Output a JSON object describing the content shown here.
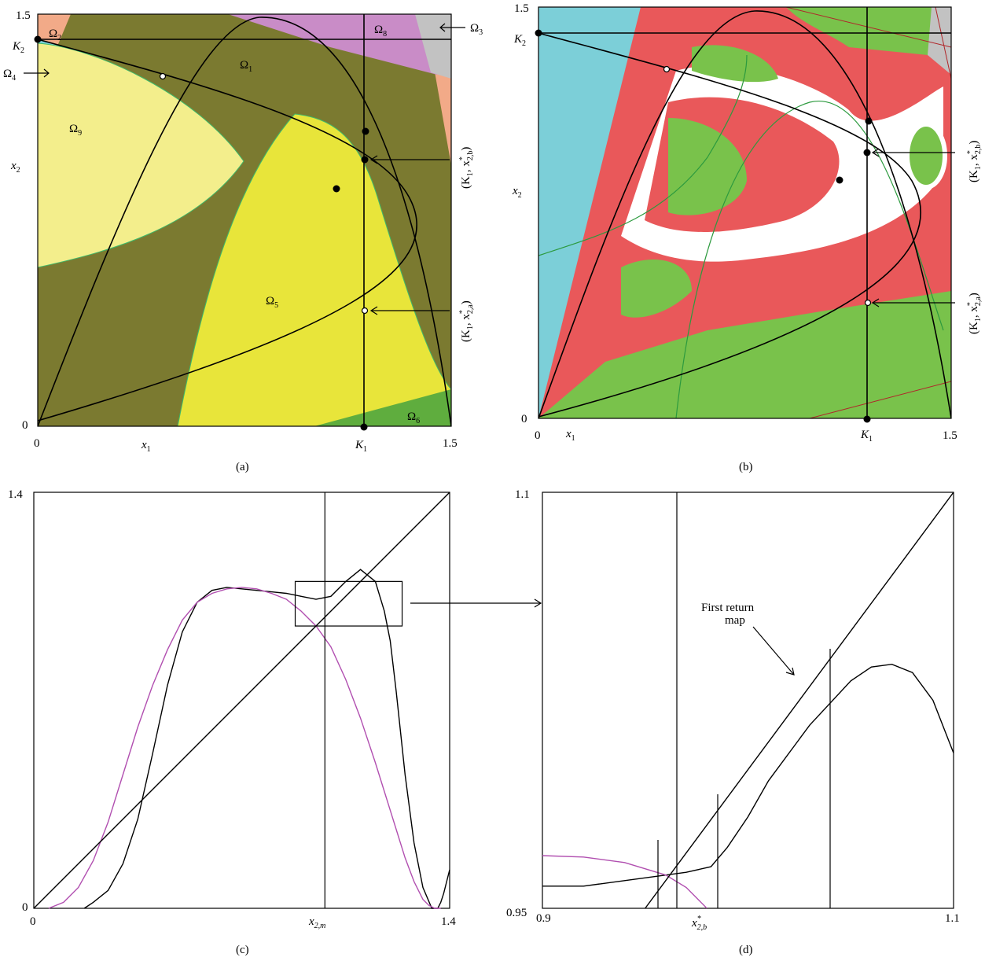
{
  "chart_data": [
    {
      "panel_label": "(a)",
      "type": "heatmap",
      "xlabel": "x1",
      "ylabel": "x2",
      "xlim": [
        0,
        1.5
      ],
      "ylim": [
        0,
        1.5
      ],
      "x_tick_labels": [
        "0",
        "1.5"
      ],
      "y_tick_labels": [
        "0",
        "1.5"
      ],
      "axis_point_labels": [
        "K1",
        "K2"
      ],
      "colors": {
        "omega1": "#7b7a30",
        "omega2": "#f2aa88",
        "omega3": "#c2c2c2",
        "omega4": "#7ccfd8",
        "omega5": "#e8e53a",
        "omega6": "#5fad3e",
        "omega8": "#c98cc7",
        "omega9": "#f3ee8c"
      },
      "region_labels": [
        "Ω1",
        "Ω2",
        "Ω3",
        "Ω4",
        "Ω5",
        "Ω6",
        "Ω8",
        "Ω9"
      ],
      "point_annotations": [
        "(K1, x*2,b)",
        "(K1, x*2,a)"
      ]
    },
    {
      "panel_label": "(b)",
      "type": "heatmap",
      "xlabel": "x1",
      "ylabel": "x2",
      "xlim": [
        0,
        1.5
      ],
      "ylim": [
        0,
        1.5
      ],
      "x_tick_labels": [
        "0",
        "1.5"
      ],
      "y_tick_labels": [
        "0",
        "1.5"
      ],
      "axis_point_labels": [
        "K1",
        "K2"
      ],
      "colors": {
        "cyan": "#7ccfd8",
        "green": "#79c24b",
        "red": "#e9585a",
        "white": "#ffffff",
        "gray": "#c2c2c2"
      },
      "point_annotations": [
        "(K1, x*2,b)",
        "(K1, x*2,a)"
      ]
    },
    {
      "panel_label": "(c)",
      "type": "line",
      "xlabel": "",
      "ylabel": "",
      "xlim": [
        0,
        1.4
      ],
      "ylim": [
        0,
        1.4
      ],
      "x_tick_labels": [
        "0",
        "1.4"
      ],
      "y_tick_labels": [
        "0",
        "1.4"
      ],
      "marker_label": "x2,m",
      "marker_x": 0.98,
      "inset_box": {
        "x": [
          0.88,
          1.24
        ],
        "y": [
          0.95,
          1.1
        ]
      },
      "series": [
        {
          "color": "#000000",
          "x": [
            0.17,
            0.2,
            0.25,
            0.3,
            0.35,
            0.4,
            0.45,
            0.5,
            0.55,
            0.6,
            0.65,
            0.7,
            0.75,
            0.8,
            0.85,
            0.9,
            0.95,
            1.0,
            1.05,
            1.1,
            1.15,
            1.18,
            1.2,
            1.22,
            1.25,
            1.28,
            1.31,
            1.34,
            1.36,
            1.37,
            1.38,
            1.39,
            1.4
          ],
          "y": [
            0.0,
            0.02,
            0.06,
            0.15,
            0.3,
            0.52,
            0.75,
            0.93,
            1.03,
            1.07,
            1.08,
            1.075,
            1.07,
            1.065,
            1.06,
            1.05,
            1.04,
            1.05,
            1.1,
            1.14,
            1.1,
            1.0,
            0.9,
            0.73,
            0.45,
            0.22,
            0.07,
            0.0,
            0.0,
            0.02,
            0.05,
            0.09,
            0.13
          ]
        },
        {
          "color": "#b14fb0",
          "x": [
            0.05,
            0.1,
            0.15,
            0.2,
            0.25,
            0.3,
            0.35,
            0.4,
            0.45,
            0.5,
            0.55,
            0.6,
            0.65,
            0.7,
            0.75,
            0.8,
            0.85,
            0.9,
            0.95,
            1.0,
            1.05,
            1.1,
            1.15,
            1.2,
            1.25,
            1.28,
            1.31,
            1.33,
            1.35,
            1.37
          ],
          "y": [
            0.0,
            0.02,
            0.07,
            0.16,
            0.29,
            0.45,
            0.61,
            0.75,
            0.87,
            0.97,
            1.03,
            1.06,
            1.075,
            1.08,
            1.075,
            1.06,
            1.04,
            1.0,
            0.95,
            0.88,
            0.77,
            0.64,
            0.49,
            0.33,
            0.17,
            0.09,
            0.03,
            0.01,
            0.0,
            0.0
          ]
        },
        {
          "color": "#000000",
          "x": [
            0,
            1.4
          ],
          "y": [
            0,
            1.4
          ]
        }
      ]
    },
    {
      "panel_label": "(d)",
      "type": "line",
      "xlabel": "",
      "ylabel": "",
      "xlim": [
        0.9,
        1.1
      ],
      "ylim": [
        0.95,
        1.1
      ],
      "x_tick_labels": [
        "0.9",
        "1.1"
      ],
      "y_tick_labels": [
        "0.95",
        "1.1"
      ],
      "marker_label": "x*2,b",
      "annotation": [
        "First return",
        "map"
      ],
      "series": [
        {
          "color": "#000000",
          "x": [
            0.9,
            0.92,
            0.97,
            0.982,
            0.99,
            1.0,
            1.01,
            1.03,
            1.05,
            1.06,
            1.07,
            1.08,
            1.09,
            1.1
          ],
          "y": [
            0.958,
            0.958,
            0.963,
            0.965,
            0.972,
            0.983,
            0.996,
            1.016,
            1.032,
            1.037,
            1.038,
            1.035,
            1.025,
            1.006
          ]
        },
        {
          "color": "#b14fb0",
          "x": [
            0.9,
            0.92,
            0.94,
            0.96,
            0.97,
            0.98
          ],
          "y": [
            0.969,
            0.9685,
            0.9665,
            0.962,
            0.9575,
            0.95
          ]
        },
        {
          "color": "#000000",
          "x": [
            0.95,
            1.1
          ],
          "y": [
            0.95,
            1.1
          ]
        }
      ]
    }
  ]
}
